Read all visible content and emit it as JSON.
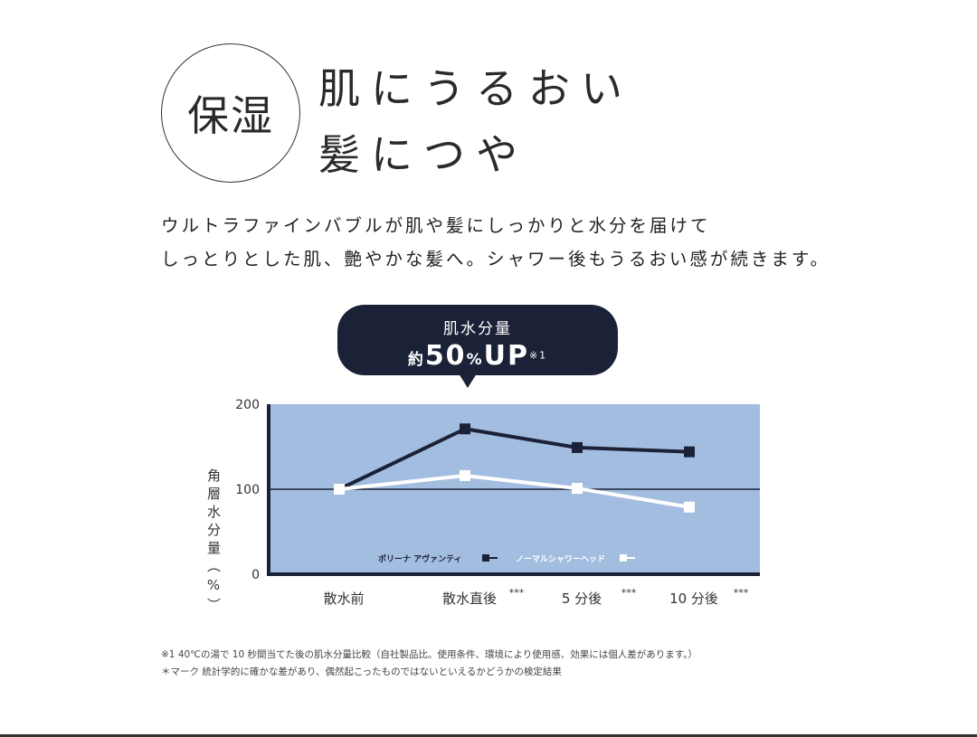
{
  "badge": "保湿",
  "headline": [
    "肌にうるおい",
    "髪につや"
  ],
  "lead": [
    "ウルトラファインバブルが肌や髪にしっかりと水分を届けて",
    "しっとりとした肌、艶やかな髪へ。シャワー後もうるおい感が続きます。"
  ],
  "callout": {
    "line1": "肌水分量",
    "prefix": "約",
    "value": "50",
    "unit": "%",
    "suffix": "UP",
    "note": "※1"
  },
  "chart_data": {
    "type": "line",
    "ylabel": "角層水分量（%）",
    "ylabel_chars": [
      "角",
      "層",
      "水",
      "分",
      "量",
      "（%）"
    ],
    "ylim": [
      0,
      200
    ],
    "yticks": [
      "0",
      "100",
      "200"
    ],
    "reference_line": 100,
    "categories": [
      "散水前",
      "散水直後",
      "5 分後",
      "10 分後"
    ],
    "significance": [
      "",
      "***",
      "***",
      "***"
    ],
    "legend_placement": "bottom-center",
    "background": "#a3bde0",
    "series": [
      {
        "name": "ポリーナ アヴァンティ",
        "color": "#1b2238",
        "values": [
          100,
          171,
          149,
          144
        ]
      },
      {
        "name": "ノーマルシャワーヘッド",
        "color": "#ffffff",
        "values": [
          100,
          116,
          101,
          79
        ]
      }
    ]
  },
  "notes": [
    "※1 40℃の湯で 10 秒間当てた後の肌水分量比較（自社製品比。使用条件、環境により使用感、効果には個人差があります。）",
    "＊マーク 統計学的に確かな差があり、偶然起こったものではないといえるかどうかの検定結果"
  ]
}
